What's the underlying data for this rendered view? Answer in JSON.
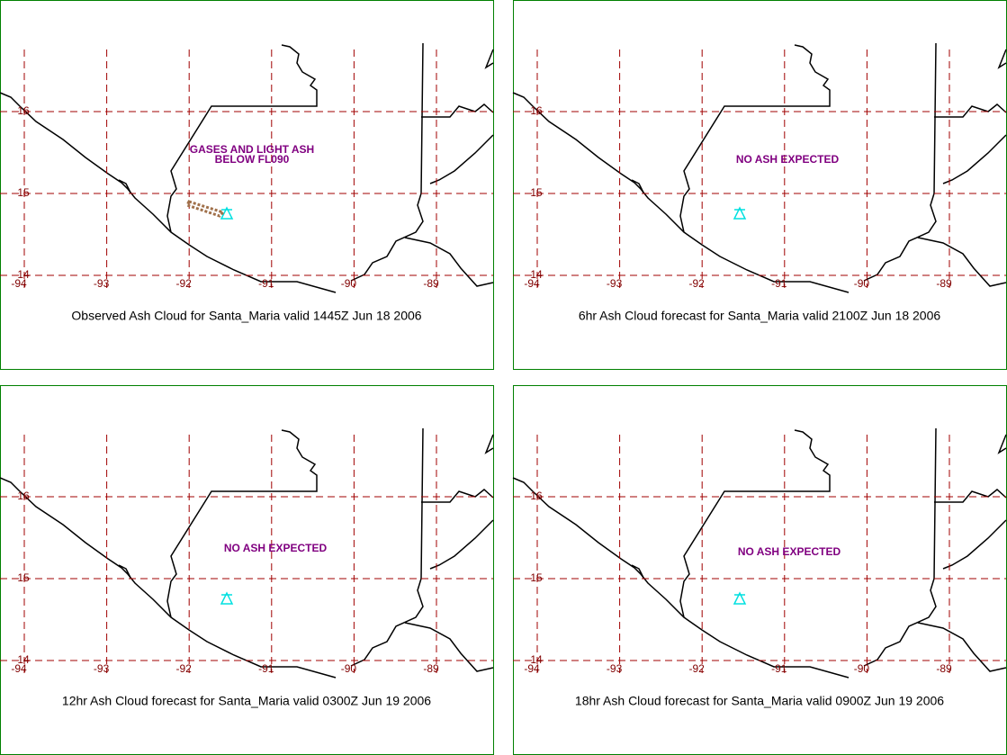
{
  "panels": [
    {
      "caption": "Observed Ash Cloud for Santa_Maria valid 1445Z Jun 18 2006",
      "annotation": [
        "GASES AND LIGHT ASH",
        "BELOW FL090"
      ],
      "annotation_pos": [
        280,
        167
      ],
      "lon_labels": [
        -94,
        -93,
        -92,
        -91,
        -90,
        -89
      ],
      "lat_labels": [
        16,
        15,
        14
      ]
    },
    {
      "caption": "6hr Ash Cloud forecast for Santa_Maria valid 2100Z Jun 18 2006",
      "annotation": [
        "NO ASH EXPECTED"
      ],
      "annotation_pos": [
        875,
        178
      ],
      "lon_labels": [
        -94,
        -93,
        -92,
        -91,
        -90,
        -89
      ],
      "lat_labels": [
        16,
        15,
        14
      ]
    },
    {
      "caption": "12hr Ash Cloud forecast for Santa_Maria valid 0300Z Jun 19 2006",
      "annotation": [
        "NO ASH EXPECTED"
      ],
      "annotation_pos": [
        306,
        610
      ],
      "lon_labels": [
        -94,
        -93,
        -92,
        -91,
        -90,
        -89
      ],
      "lat_labels": [
        16,
        15,
        14
      ]
    },
    {
      "caption": "18hr Ash Cloud forecast for Santa_Maria valid 0900Z Jun 19 2006",
      "annotation": [
        "NO ASH EXPECTED"
      ],
      "annotation_pos": [
        877,
        614
      ],
      "lon_labels": [
        -94,
        -93,
        -92,
        -91,
        -90,
        -89
      ],
      "lat_labels": [
        16,
        15,
        14
      ]
    }
  ]
}
